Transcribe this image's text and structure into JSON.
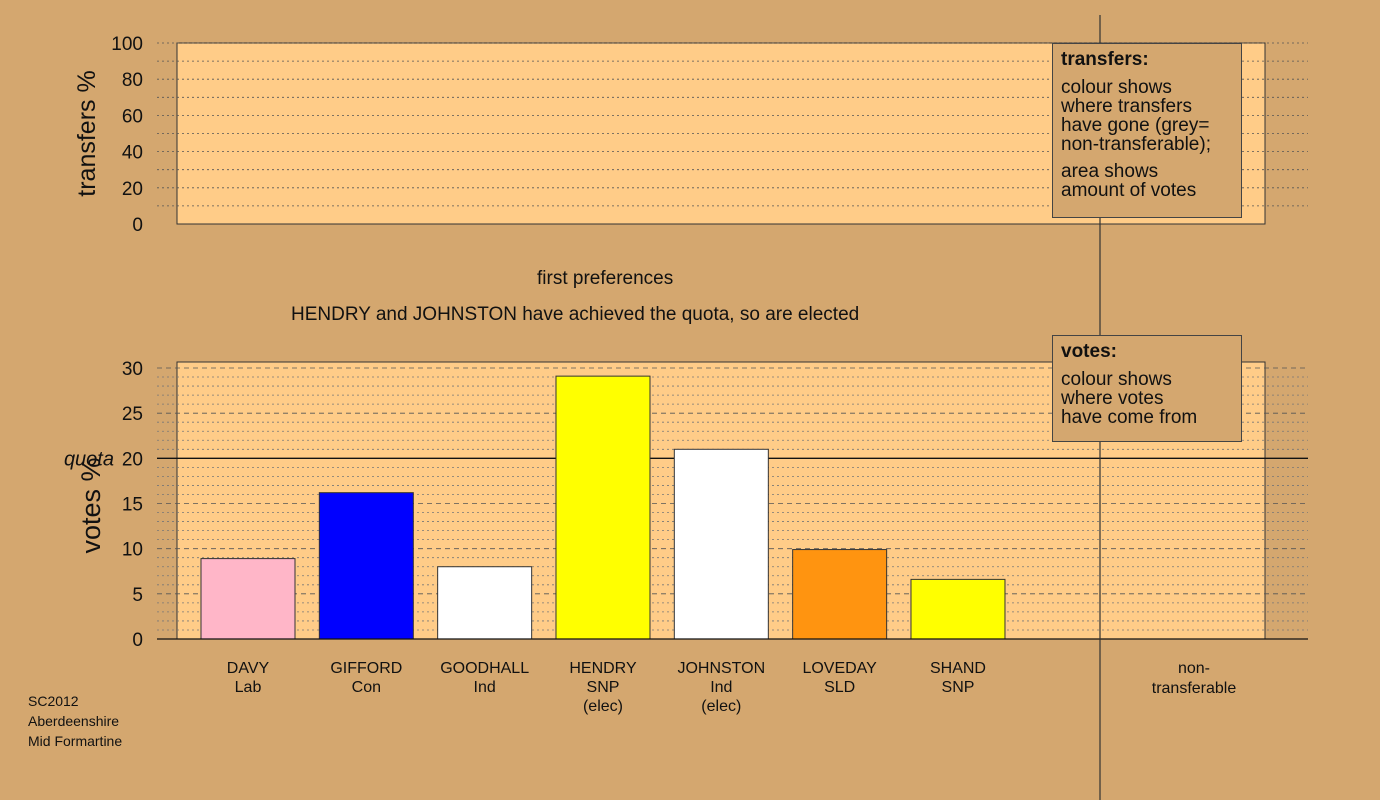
{
  "chart_data": [
    {
      "type": "bar",
      "ylabel": "transfers %",
      "ylim": [
        0,
        100
      ],
      "yticks": [
        0,
        20,
        40,
        60,
        80,
        100
      ],
      "categories": [],
      "values": [],
      "grid": true
    },
    {
      "type": "bar",
      "ylabel": "votes %",
      "ylim": [
        0,
        30
      ],
      "yticks": [
        0,
        5,
        10,
        15,
        20,
        25,
        30
      ],
      "quota": 20,
      "quota_label": "quota",
      "grid": true,
      "categories": [
        {
          "name": "DAVY",
          "party": "Lab",
          "note": ""
        },
        {
          "name": "GIFFORD",
          "party": "Con",
          "note": ""
        },
        {
          "name": "GOODHALL",
          "party": "Ind",
          "note": ""
        },
        {
          "name": "HENDRY",
          "party": "SNP",
          "note": "(elec)"
        },
        {
          "name": "JOHNSTON",
          "party": "Ind",
          "note": "(elec)"
        },
        {
          "name": "LOVEDAY",
          "party": "SLD",
          "note": ""
        },
        {
          "name": "SHAND",
          "party": "SNP",
          "note": ""
        }
      ],
      "values": [
        8.9,
        16.2,
        8.0,
        29.1,
        21.0,
        9.9,
        6.6
      ],
      "colors": [
        "#ffb6c8",
        "#0000ff",
        "#ffffff",
        "#ffff00",
        "#ffffff",
        "#ff9410",
        "#ffff00"
      ],
      "nontransferable_label": [
        "non-",
        "transferable"
      ]
    }
  ],
  "captions": {
    "stage": "first preferences",
    "status": "HENDRY and JOHNSTON have achieved the quota, so are elected"
  },
  "legend_transfers": {
    "title": "transfers:",
    "para1": [
      "colour shows",
      "where transfers",
      "have gone (grey=",
      "non-transferable);"
    ],
    "para2": [
      "area shows",
      "amount of votes"
    ]
  },
  "legend_votes": {
    "title": "votes:",
    "para1": [
      "colour shows",
      "where votes",
      "have come from"
    ]
  },
  "footer": [
    "SC2012",
    "Aberdeenshire",
    "Mid Formartine"
  ],
  "colors": {
    "background": "#d4a76f",
    "plot_fill": "#ffcc88"
  }
}
